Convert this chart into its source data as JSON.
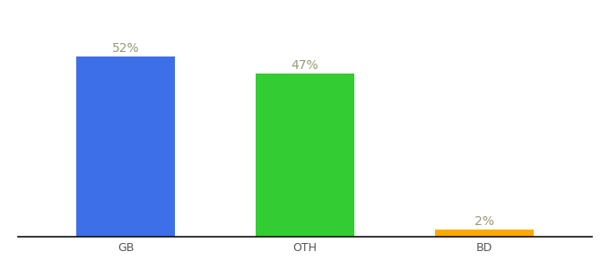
{
  "categories": [
    "GB",
    "OTH",
    "BD"
  ],
  "values": [
    52,
    47,
    2
  ],
  "bar_colors": [
    "#3d6fe8",
    "#33cc33",
    "#ffaa00"
  ],
  "value_labels": [
    "52%",
    "47%",
    "2%"
  ],
  "ylim": [
    0,
    62
  ],
  "background_color": "#ffffff",
  "label_fontsize": 10,
  "tick_fontsize": 9,
  "label_color": "#999977",
  "bar_width": 0.55,
  "x_positions": [
    0,
    1,
    2
  ]
}
